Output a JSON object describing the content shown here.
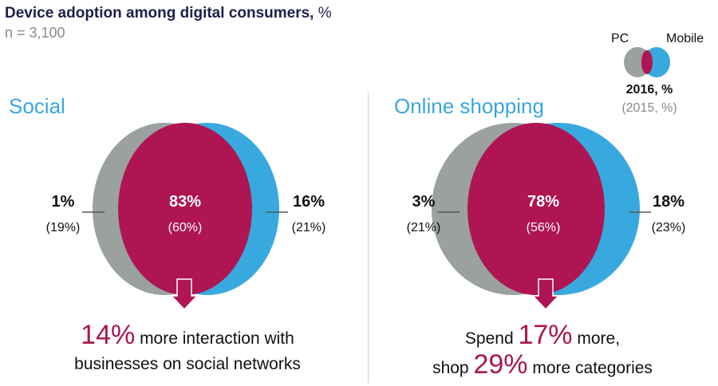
{
  "header": {
    "title": "Device adoption among digital consumers,",
    "title_unit": "%",
    "sample": "n = 3,100"
  },
  "legend": {
    "left_label": "PC",
    "right_label": "Mobile",
    "caption_current": "2016, %",
    "caption_previous": "(2015, %)"
  },
  "colors": {
    "pc": "#9aa19f",
    "both": "#ae1552",
    "mobile": "#38a9df",
    "accent_text": "#a8174f",
    "section_title": "#3aa6dd"
  },
  "panels": [
    {
      "title": "Social",
      "pc": {
        "value": "1%",
        "previous": "(19%)"
      },
      "both": {
        "value": "83%",
        "previous": "(60%)"
      },
      "mobile": {
        "value": "16%",
        "previous": "(21%)"
      },
      "callout": {
        "pct": "14%",
        "line1_rest": " more interaction with",
        "line2": "businesses on social networks"
      }
    },
    {
      "title": "Online shopping",
      "pc": {
        "value": "3%",
        "previous": "(21%)"
      },
      "both": {
        "value": "78%",
        "previous": "(56%)"
      },
      "mobile": {
        "value": "18%",
        "previous": "(23%)"
      },
      "callout": {
        "line1_pre": "Spend ",
        "pct1": "17%",
        "line1_post": " more,",
        "line2_pre": "shop ",
        "pct2": "29%",
        "line2_post": " more categories"
      }
    }
  ]
}
